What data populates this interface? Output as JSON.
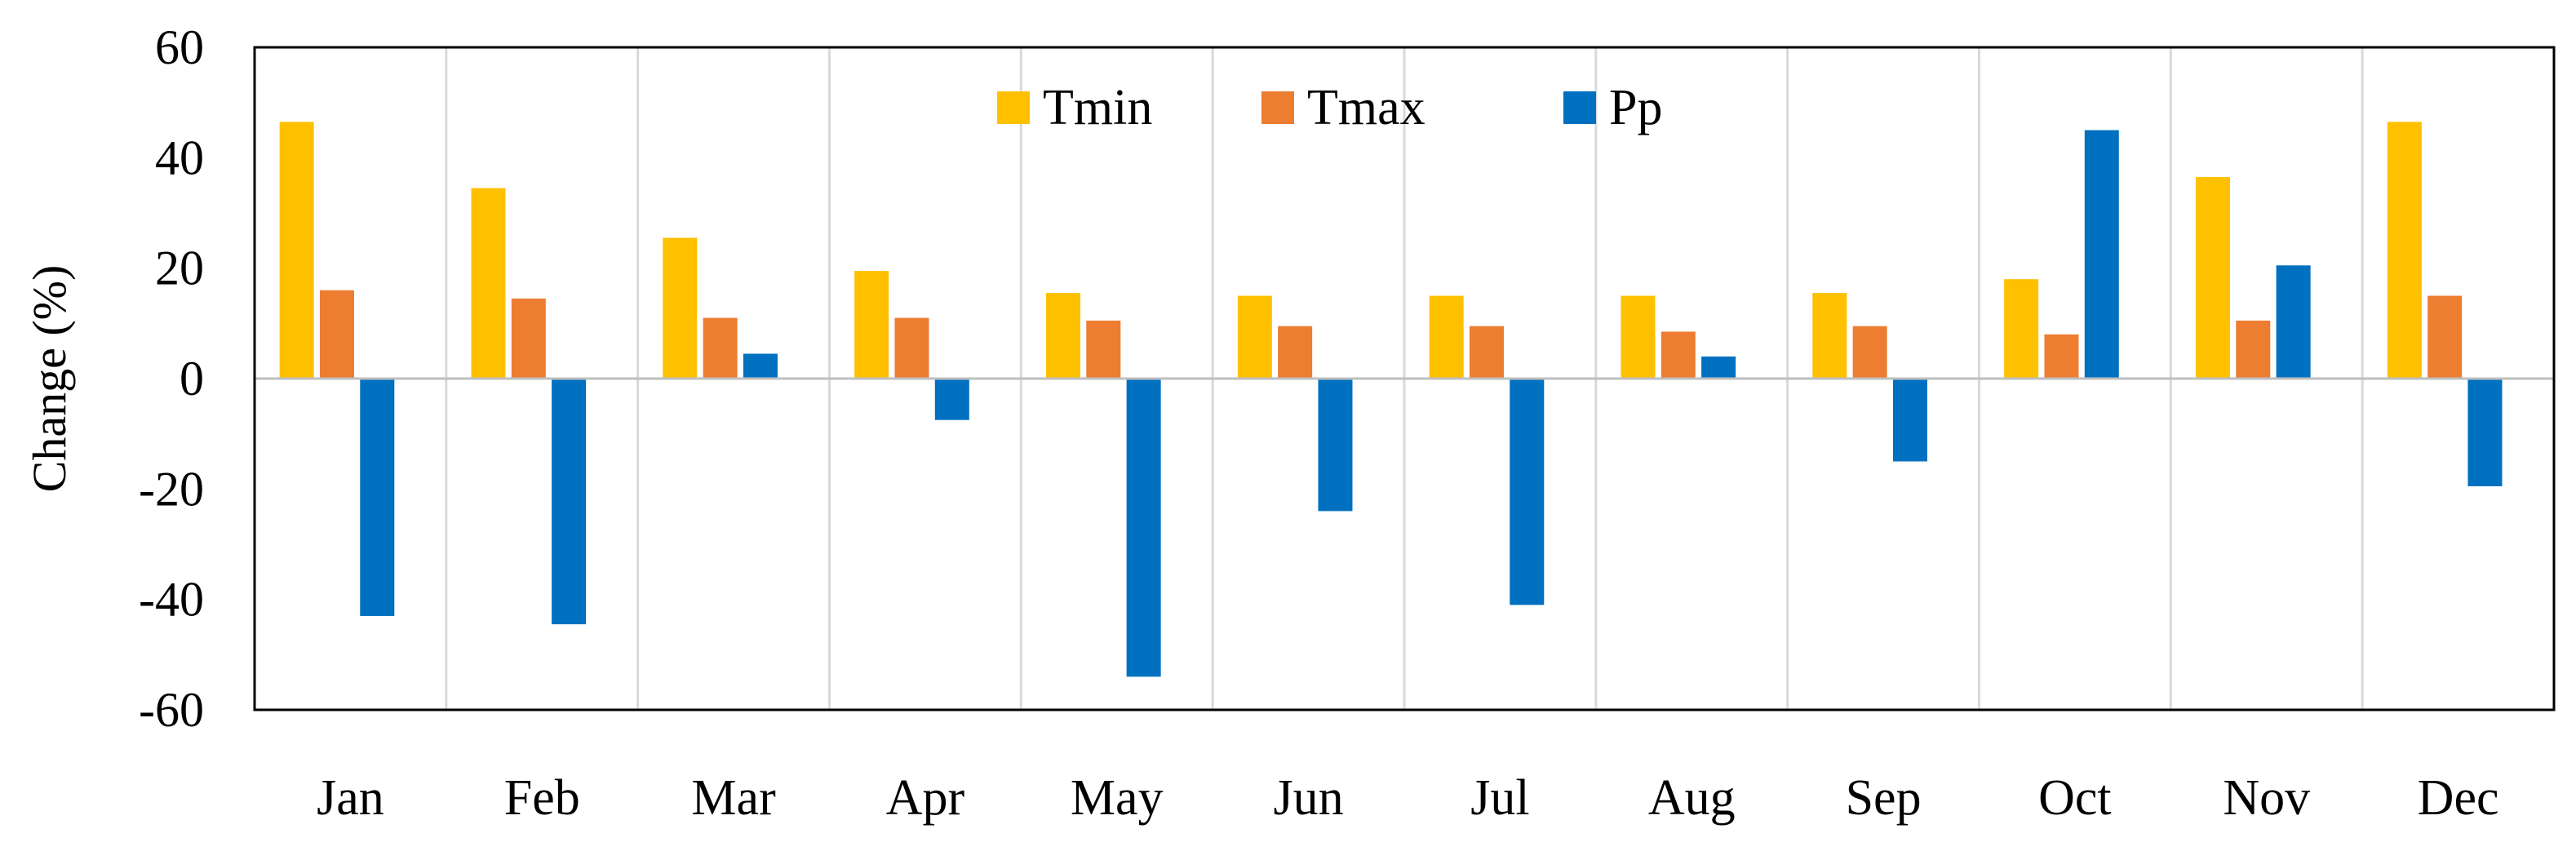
{
  "chart_data": {
    "type": "bar",
    "title": "",
    "xlabel": "",
    "ylabel": "Change (%)",
    "ylim": [
      -60,
      60
    ],
    "yticks": [
      60,
      40,
      20,
      0,
      -20,
      -40,
      -60
    ],
    "grid": "vertical category separators",
    "legend_position": "top-center",
    "categories": [
      "Jan",
      "Feb",
      "Mar",
      "Apr",
      "May",
      "Jun",
      "Jul",
      "Aug",
      "Sep",
      "Oct",
      "Nov",
      "Dec"
    ],
    "series": [
      {
        "name": "Tmin",
        "color": "#FFC000",
        "values": [
          46.5,
          34.5,
          25.5,
          19.5,
          15.5,
          15,
          15,
          15,
          15.5,
          18,
          36.5,
          46.5
        ]
      },
      {
        "name": "Tmax",
        "color": "#ED7D31",
        "values": [
          16,
          14.5,
          11,
          11,
          10.5,
          9.5,
          9.5,
          8.5,
          9.5,
          8,
          10.5,
          15
        ]
      },
      {
        "name": "Pp",
        "color": "#0070C0",
        "values": [
          -43,
          -44.5,
          4.5,
          -7.5,
          -54,
          -24,
          -41,
          4,
          -15,
          45,
          20.5,
          -19.5
        ]
      }
    ]
  }
}
